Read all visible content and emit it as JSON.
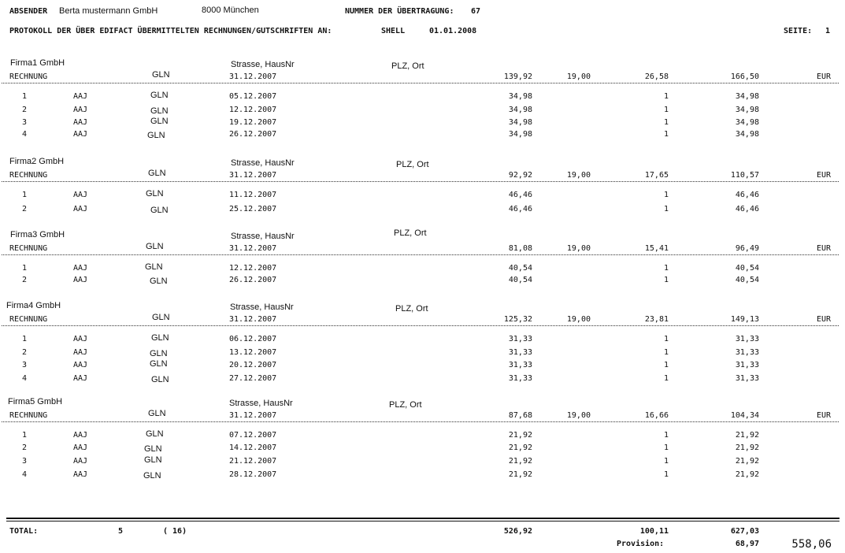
{
  "header": {
    "sender_label": "ABSENDER",
    "sender_name": "Berta mustermann GmbH",
    "sender_city": "8000 München",
    "transmission_label": "NUMMER DER ÜBERTRAGUNG:",
    "transmission_number": "67",
    "protocol_title": "PROTOKOLL DER ÜBER EDIFACT ÜBERMITTELTEN RECHNUNGEN/GUTSCHRIFTEN AN:",
    "recipient": "SHELL",
    "date": "01.01.2008",
    "page_label": "SEITE:",
    "page_number": "1"
  },
  "invoices": [
    {
      "firm": "Firma1 GmbH",
      "street": "Strasse, HausNr",
      "city": "PLZ, Ort",
      "type": "RECHNUNG",
      "gln": "GLN",
      "date": "31.12.2007",
      "net": "139,92",
      "vat_rate": "19,00",
      "vat": "26,58",
      "gross": "166,50",
      "currency": "EUR",
      "items": [
        {
          "no": "1",
          "code": "AAJ",
          "gln": "GLN",
          "date": "05.12.2007",
          "amount": "34,98",
          "qty": "1",
          "total": "34,98"
        },
        {
          "no": "2",
          "code": "AAJ",
          "gln": "GLN",
          "date": "12.12.2007",
          "amount": "34,98",
          "qty": "1",
          "total": "34,98"
        },
        {
          "no": "3",
          "code": "AAJ",
          "gln": "GLN",
          "date": "19.12.2007",
          "amount": "34,98",
          "qty": "1",
          "total": "34,98"
        },
        {
          "no": "4",
          "code": "AAJ",
          "gln": "GLN",
          "date": "26.12.2007",
          "amount": "34,98",
          "qty": "1",
          "total": "34,98"
        }
      ]
    },
    {
      "firm": "Firma2 GmbH",
      "street": "Strasse, HausNr",
      "city": "PLZ, Ort",
      "type": "RECHNUNG",
      "gln": "GLN",
      "date": "31.12.2007",
      "net": "92,92",
      "vat_rate": "19,00",
      "vat": "17,65",
      "gross": "110,57",
      "currency": "EUR",
      "items": [
        {
          "no": "1",
          "code": "AAJ",
          "gln": "GLN",
          "date": "11.12.2007",
          "amount": "46,46",
          "qty": "1",
          "total": "46,46"
        },
        {
          "no": "2",
          "code": "AAJ",
          "gln": "GLN",
          "date": "25.12.2007",
          "amount": "46,46",
          "qty": "1",
          "total": "46,46"
        }
      ]
    },
    {
      "firm": "Firma3 GmbH",
      "street": "Strasse, HausNr",
      "city": "PLZ, Ort",
      "type": "RECHNUNG",
      "gln": "GLN",
      "date": "31.12.2007",
      "net": "81,08",
      "vat_rate": "19,00",
      "vat": "15,41",
      "gross": "96,49",
      "currency": "EUR",
      "items": [
        {
          "no": "1",
          "code": "AAJ",
          "gln": "GLN",
          "date": "12.12.2007",
          "amount": "40,54",
          "qty": "1",
          "total": "40,54"
        },
        {
          "no": "2",
          "code": "AAJ",
          "gln": "GLN",
          "date": "26.12.2007",
          "amount": "40,54",
          "qty": "1",
          "total": "40,54"
        }
      ]
    },
    {
      "firm": "Firma4 GmbH",
      "street": "Strasse, HausNr",
      "city": "PLZ, Ort",
      "type": "RECHNUNG",
      "gln": "GLN",
      "date": "31.12.2007",
      "net": "125,32",
      "vat_rate": "19,00",
      "vat": "23,81",
      "gross": "149,13",
      "currency": "EUR",
      "items": [
        {
          "no": "1",
          "code": "AAJ",
          "gln": "GLN",
          "date": "06.12.2007",
          "amount": "31,33",
          "qty": "1",
          "total": "31,33"
        },
        {
          "no": "2",
          "code": "AAJ",
          "gln": "GLN",
          "date": "13.12.2007",
          "amount": "31,33",
          "qty": "1",
          "total": "31,33"
        },
        {
          "no": "3",
          "code": "AAJ",
          "gln": "GLN",
          "date": "20.12.2007",
          "amount": "31,33",
          "qty": "1",
          "total": "31,33"
        },
        {
          "no": "4",
          "code": "AAJ",
          "gln": "GLN",
          "date": "27.12.2007",
          "amount": "31,33",
          "qty": "1",
          "total": "31,33"
        }
      ]
    },
    {
      "firm": "Firma5 GmbH",
      "street": "Strasse, HausNr",
      "city": "PLZ, Ort",
      "type": "RECHNUNG",
      "gln": "GLN",
      "date": "31.12.2007",
      "net": "87,68",
      "vat_rate": "19,00",
      "vat": "16,66",
      "gross": "104,34",
      "currency": "EUR",
      "items": [
        {
          "no": "1",
          "code": "AAJ",
          "gln": "GLN",
          "date": "07.12.2007",
          "amount": "21,92",
          "qty": "1",
          "total": "21,92"
        },
        {
          "no": "2",
          "code": "AAJ",
          "gln": "GLN",
          "date": "14.12.2007",
          "amount": "21,92",
          "qty": "1",
          "total": "21,92"
        },
        {
          "no": "3",
          "code": "AAJ",
          "gln": "GLN",
          "date": "21.12.2007",
          "amount": "21,92",
          "qty": "1",
          "total": "21,92"
        },
        {
          "no": "4",
          "code": "AAJ",
          "gln": "GLN",
          "date": "28.12.2007",
          "amount": "21,92",
          "qty": "1",
          "total": "21,92"
        }
      ]
    }
  ],
  "totals": {
    "label": "TOTAL:",
    "invoice_count": "5",
    "item_count": "( 16)",
    "net": "526,92",
    "vat": "100,11",
    "gross": "627,03",
    "commission_label": "Provision:",
    "commission": "68,97",
    "payout": "558,06"
  }
}
